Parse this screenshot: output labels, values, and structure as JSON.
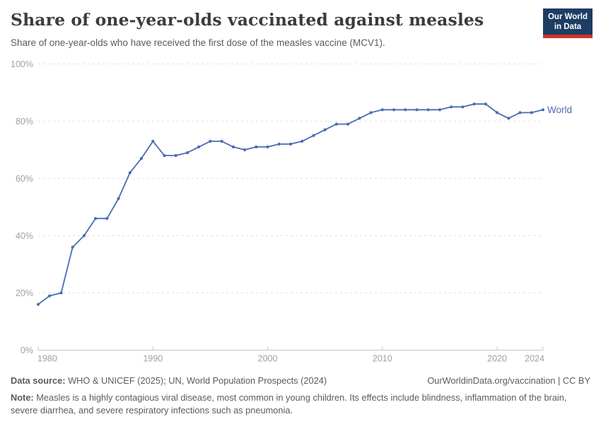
{
  "header": {
    "title": "Share of one-year-olds vaccinated against measles",
    "subtitle": "Share of one-year-olds who have received the first dose of the measles vaccine (MCV1).",
    "logo": {
      "line1": "Our World",
      "line2": "in Data",
      "bg_color": "#1d3d63",
      "accent_color": "#d0342c"
    }
  },
  "chart_data": {
    "type": "line",
    "title": "Share of one-year-olds vaccinated against measles",
    "xlabel": "",
    "ylabel": "",
    "xlim": [
      1980,
      2024
    ],
    "ylim": [
      0,
      100
    ],
    "grid": "horizontal-dashed",
    "legend_position": "end-of-line",
    "x_ticks": [
      "1980",
      "1990",
      "2000",
      "2010",
      "2020",
      "2024"
    ],
    "x_tick_values": [
      1980,
      1990,
      2000,
      2010,
      2020,
      2024
    ],
    "y_ticks": [
      "0%",
      "20%",
      "40%",
      "60%",
      "80%",
      "100%"
    ],
    "y_tick_values": [
      0,
      20,
      40,
      60,
      80,
      100
    ],
    "x": [
      1980,
      1981,
      1982,
      1983,
      1984,
      1985,
      1986,
      1987,
      1988,
      1989,
      1990,
      1991,
      1992,
      1993,
      1994,
      1995,
      1996,
      1997,
      1998,
      1999,
      2000,
      2001,
      2002,
      2003,
      2004,
      2005,
      2006,
      2007,
      2008,
      2009,
      2010,
      2011,
      2012,
      2013,
      2014,
      2015,
      2016,
      2017,
      2018,
      2019,
      2020,
      2021,
      2022,
      2023,
      2024
    ],
    "series": [
      {
        "name": "World",
        "color": "#4a6cb2",
        "values": [
          16,
          19,
          20,
          36,
          40,
          46,
          46,
          53,
          62,
          67,
          73,
          68,
          68,
          69,
          71,
          73,
          73,
          71,
          70,
          71,
          71,
          72,
          72,
          73,
          75,
          77,
          79,
          79,
          81,
          83,
          84,
          84,
          84,
          84,
          84,
          84,
          85,
          85,
          86,
          86,
          83,
          81,
          83,
          83,
          84
        ]
      }
    ]
  },
  "footer": {
    "datasource_label": "Data source:",
    "datasource": "WHO & UNICEF (2025); UN, World Population Prospects (2024)",
    "link": "OurWorldinData.org/vaccination | CC BY",
    "note_label": "Note:",
    "note": "Measles is a highly contagious viral disease, most common in young children. Its effects include blindness, inflammation of the brain, severe diarrhea, and severe respiratory infections such as pneumonia."
  }
}
